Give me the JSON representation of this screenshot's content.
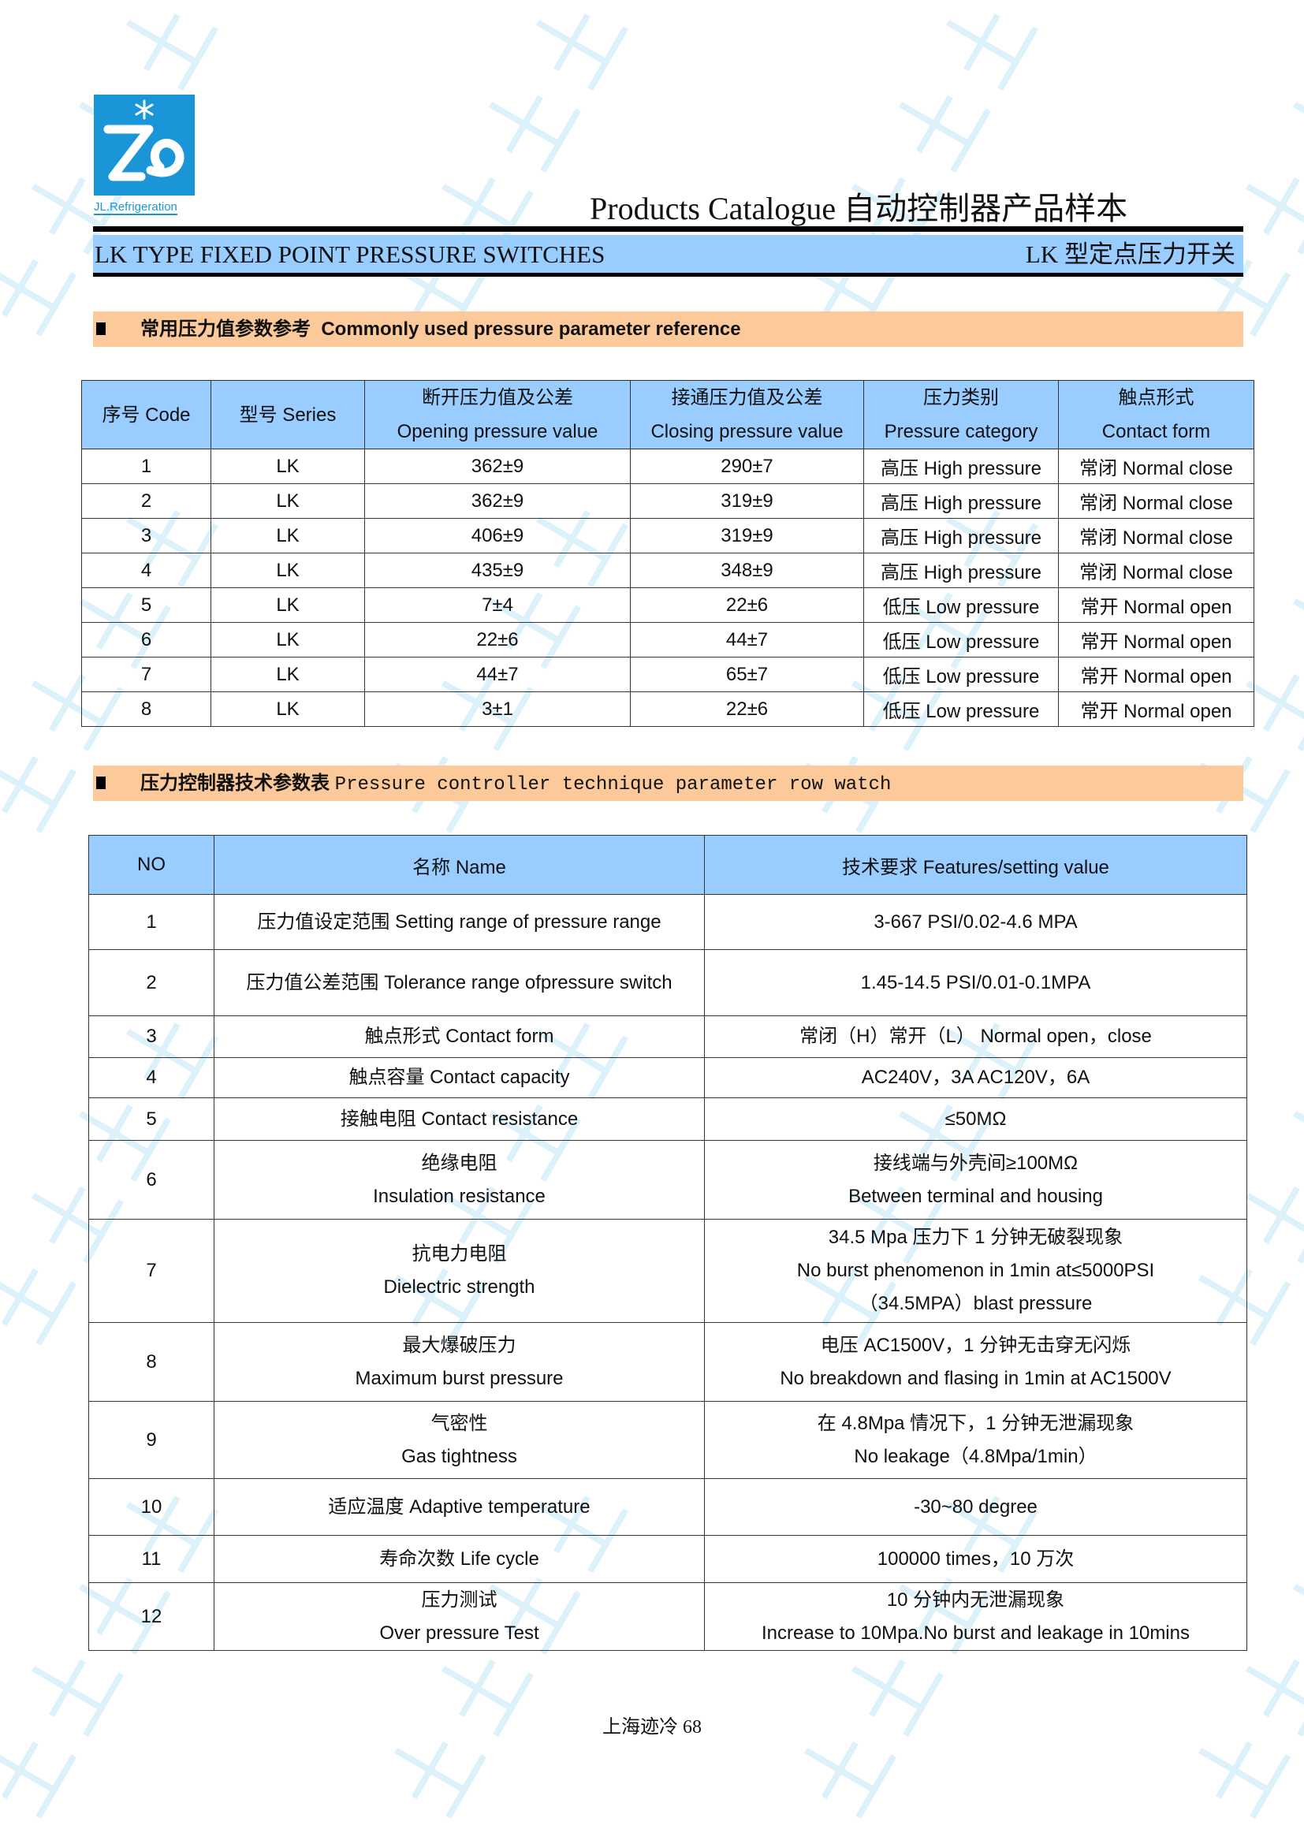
{
  "watermark": "上海迹冷",
  "logo": {
    "brand": "JL.Refrigeration"
  },
  "header": {
    "catalog_title": "Products Catalogue 自动控制器产品样本",
    "band_left": "LK TYPE FIXED POINT PRESSURE SWITCHES",
    "band_right": "LK 型定点压力开关"
  },
  "section1": {
    "title_cn": "常用压力值参数参考",
    "title_en": "Commonly used pressure parameter reference"
  },
  "table1": {
    "headers": [
      [
        "序号  Code",
        ""
      ],
      [
        "型号  Series",
        ""
      ],
      [
        "断开压力值及公差",
        "Opening pressure value"
      ],
      [
        "接通压力值及公差",
        "Closing pressure value"
      ],
      [
        "压力类别",
        "Pressure category"
      ],
      [
        "触点形式",
        "Contact form"
      ]
    ],
    "rows": [
      [
        "1",
        "LK",
        "362±9",
        "290±7",
        "高压 High pressure",
        "常闭  Normal close"
      ],
      [
        "2",
        "LK",
        "362±9",
        "319±9",
        "高压 High pressure",
        "常闭  Normal close"
      ],
      [
        "3",
        "LK",
        "406±9",
        "319±9",
        "高压 High pressure",
        "常闭  Normal close"
      ],
      [
        "4",
        "LK",
        "435±9",
        "348±9",
        "高压 High pressure",
        "常闭  Normal close"
      ],
      [
        "5",
        "LK",
        "7±4",
        "22±6",
        "低压  Low pressure",
        "常开  Normal open"
      ],
      [
        "6",
        "LK",
        "22±6",
        "44±7",
        "低压  Low pressure",
        "常开  Normal open"
      ],
      [
        "7",
        "LK",
        "44±7",
        "65±7",
        "低压  Low pressure",
        "常开  Normal open"
      ],
      [
        "8",
        "LK",
        "3±1",
        "22±6",
        "低压  Low pressure",
        "常开  Normal open"
      ]
    ]
  },
  "section2": {
    "title_cn": "压力控制器技术参数表",
    "title_en": "Pressure controller technique parameter row watch"
  },
  "table2": {
    "headers": [
      "NO",
      "名称  Name",
      "技术要求  Features/setting value"
    ],
    "rows": [
      {
        "no": "1",
        "name": [
          "压力值设定范围  Setting range of pressure range"
        ],
        "value": [
          "3-667 PSI/0.02-4.6 MPA"
        ]
      },
      {
        "no": "2",
        "name": [
          "压力值公差范围  Tolerance range ofpressure switch"
        ],
        "value": [
          "1.45-14.5 PSI/0.01-0.1MPA"
        ]
      },
      {
        "no": "3",
        "name": [
          "触点形式  Contact form"
        ],
        "value": [
          "常闭（H）常开（L）  Normal open，close"
        ]
      },
      {
        "no": "4",
        "name": [
          "触点容量  Contact capacity"
        ],
        "value": [
          "AC240V，3A AC120V，6A"
        ]
      },
      {
        "no": "5",
        "name": [
          "接触电阻  Contact resistance"
        ],
        "value": [
          "≤50MΩ"
        ]
      },
      {
        "no": "6",
        "name": [
          "绝缘电阻",
          "Insulation resistance"
        ],
        "value": [
          "接线端与外壳间≥100MΩ",
          "Between terminal and housing"
        ]
      },
      {
        "no": "7",
        "name": [
          "抗电力电阻",
          "Dielectric strength"
        ],
        "value": [
          "34.5 Mpa 压力下 1 分钟无破裂现象",
          "No burst phenomenon in 1min at≤5000PSI",
          "（34.5MPA）blast pressure"
        ]
      },
      {
        "no": "8",
        "name": [
          "最大爆破压力",
          "Maximum burst pressure"
        ],
        "value": [
          "电压 AC1500V，1 分钟无击穿无闪烁",
          "No breakdown and flasing in 1min at AC1500V"
        ]
      },
      {
        "no": "9",
        "name": [
          "气密性",
          "Gas tightness"
        ],
        "value": [
          "在 4.8Mpa 情况下，1 分钟无泄漏现象",
          "No leakage（4.8Mpa/1min）"
        ]
      },
      {
        "no": "10",
        "name": [
          "适应温度  Adaptive temperature"
        ],
        "value": [
          "-30~80 degree"
        ]
      },
      {
        "no": "11",
        "name": [
          "寿命次数  Life cycle"
        ],
        "value": [
          "100000 times，10 万次"
        ]
      },
      {
        "no": "12",
        "name": [
          "压力测试",
          "Over pressure Test"
        ],
        "value": [
          "10 分钟内无泄漏现象",
          "Increase to 10Mpa.No burst and leakage in 10mins"
        ]
      }
    ]
  },
  "footer": {
    "text": "上海迹冷  68"
  }
}
